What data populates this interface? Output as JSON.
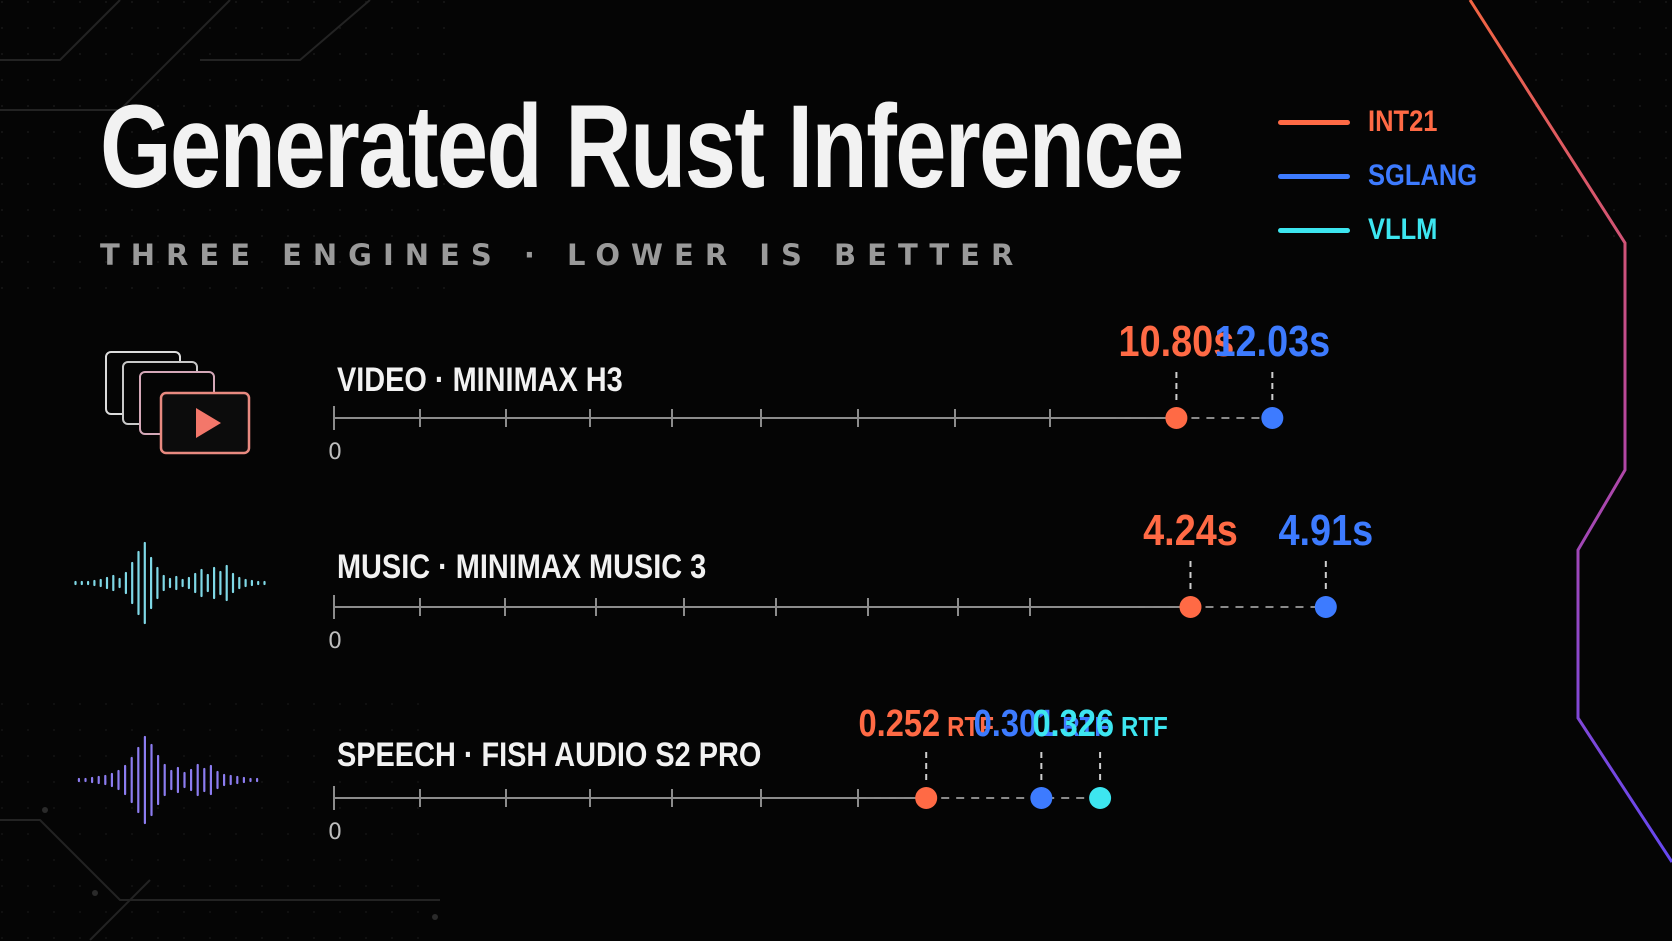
{
  "header": {
    "title": "Generated Rust Inference",
    "subtitle": "THREE ENGINES · LOWER IS BETTER"
  },
  "legend": [
    {
      "name": "INT21",
      "color": "#ff6a45"
    },
    {
      "name": "SGLANG",
      "color": "#3d7bff"
    },
    {
      "name": "VLLM",
      "color": "#3de6f0"
    }
  ],
  "chart_data": [
    {
      "type": "scatter",
      "title": "VIDEO · MINIMAX H3",
      "icon": "video-stack-icon",
      "axis_start_label": "0",
      "unit": "s",
      "series": [
        {
          "name": "INT21",
          "value": 10.8,
          "label": "10.80s"
        },
        {
          "name": "SGLANG",
          "value": 12.03,
          "label": "12.03s"
        }
      ]
    },
    {
      "type": "scatter",
      "title": "MUSIC · MINIMAX MUSIC 3",
      "icon": "music-waveform-icon",
      "axis_start_label": "0",
      "unit": "s",
      "series": [
        {
          "name": "INT21",
          "value": 4.24,
          "label": "4.24s"
        },
        {
          "name": "SGLANG",
          "value": 4.91,
          "label": "4.91s"
        }
      ]
    },
    {
      "type": "scatter",
      "title": "SPEECH · FISH AUDIO S2 PRO",
      "icon": "speech-waveform-icon",
      "axis_start_label": "0",
      "unit": "RTF",
      "series": [
        {
          "name": "INT21",
          "value": 0.252,
          "label": "0.252",
          "suffix": "RTF"
        },
        {
          "name": "SGLANG",
          "value": 0.301,
          "label": "0.301",
          "suffix": "RTF"
        },
        {
          "name": "VLLM",
          "value": 0.326,
          "label": "0.326",
          "suffix": "RTF"
        }
      ]
    }
  ]
}
